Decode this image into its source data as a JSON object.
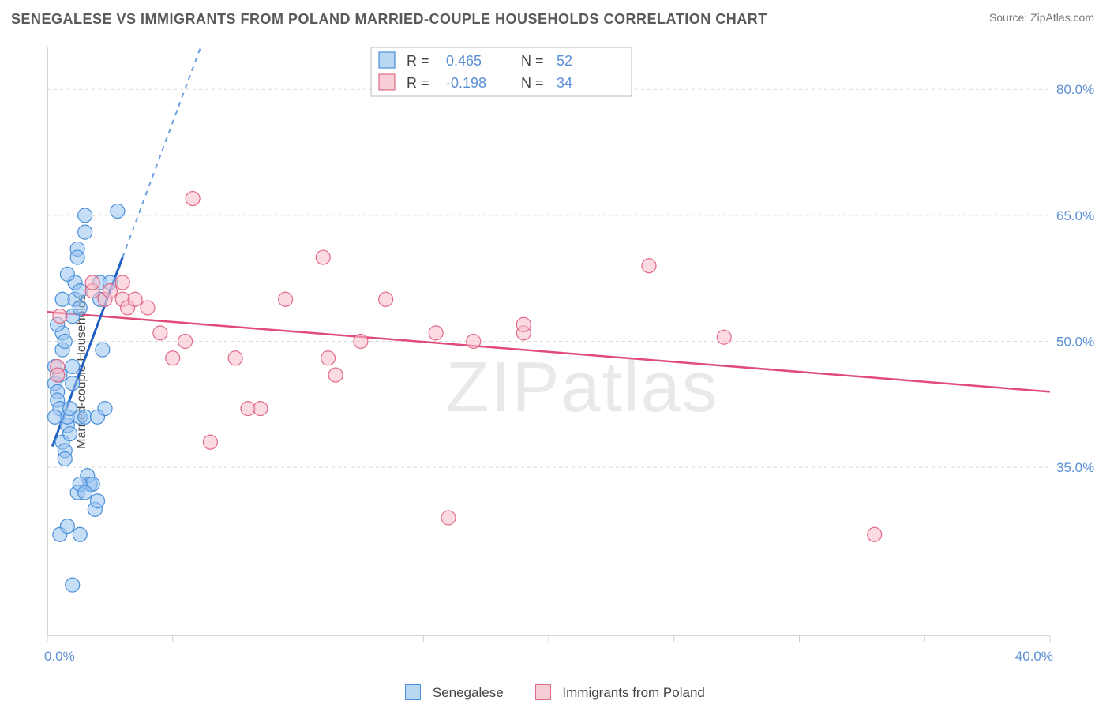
{
  "title": "SENEGALESE VS IMMIGRANTS FROM POLAND MARRIED-COUPLE HOUSEHOLDS CORRELATION CHART",
  "source": "Source: ZipAtlas.com",
  "ylabel": "Married-couple Households",
  "watermark": "ZIPatlas",
  "chart": {
    "type": "scatter",
    "background_color": "#ffffff",
    "grid_color": "#d9d9d9",
    "axis_color": "#cccccc",
    "xlim": [
      0,
      40
    ],
    "ylim": [
      15,
      85
    ],
    "x_ticks": [
      0,
      5,
      10,
      15,
      20,
      25,
      30,
      35,
      40
    ],
    "x_tick_labels": {
      "0": "0.0%",
      "40": "40.0%"
    },
    "y_ticks": [
      35,
      50,
      65,
      80
    ],
    "y_tick_labels": {
      "35": "35.0%",
      "50": "50.0%",
      "65": "65.0%",
      "80": "80.0%"
    },
    "marker_radius": 9,
    "series": [
      {
        "name": "Senegalese",
        "color_fill": "#99c3f0",
        "color_stroke": "#4a90d9",
        "R": 0.465,
        "N": 52,
        "regression": {
          "x1": 0.2,
          "y1": 37.5,
          "x2": 3.0,
          "y2": 60.0,
          "extend_dashed_to_top": true
        },
        "points": [
          [
            0.3,
            47
          ],
          [
            0.3,
            45
          ],
          [
            0.4,
            44
          ],
          [
            0.4,
            43
          ],
          [
            0.5,
            46
          ],
          [
            0.5,
            42
          ],
          [
            0.6,
            49
          ],
          [
            0.6,
            51
          ],
          [
            0.6,
            38
          ],
          [
            0.7,
            37
          ],
          [
            0.7,
            36
          ],
          [
            0.8,
            40
          ],
          [
            0.8,
            41
          ],
          [
            0.9,
            42
          ],
          [
            0.9,
            39
          ],
          [
            1.0,
            45
          ],
          [
            1.0,
            47
          ],
          [
            1.0,
            53
          ],
          [
            1.1,
            57
          ],
          [
            1.1,
            55
          ],
          [
            1.2,
            61
          ],
          [
            1.2,
            60
          ],
          [
            1.3,
            56
          ],
          [
            1.3,
            54
          ],
          [
            1.3,
            41
          ],
          [
            1.5,
            63
          ],
          [
            1.5,
            65
          ],
          [
            1.5,
            41
          ],
          [
            1.6,
            34
          ],
          [
            1.7,
            33
          ],
          [
            1.8,
            33
          ],
          [
            1.9,
            30
          ],
          [
            2.0,
            31
          ],
          [
            2.0,
            41
          ],
          [
            2.1,
            57
          ],
          [
            2.1,
            55
          ],
          [
            2.2,
            49
          ],
          [
            2.3,
            42
          ],
          [
            2.5,
            57
          ],
          [
            2.8,
            65.5
          ],
          [
            0.5,
            27
          ],
          [
            0.8,
            28
          ],
          [
            1.2,
            32
          ],
          [
            1.3,
            33
          ],
          [
            1.5,
            32
          ],
          [
            0.6,
            55
          ],
          [
            0.8,
            58
          ],
          [
            0.4,
            52
          ],
          [
            0.7,
            50
          ],
          [
            1.0,
            21
          ],
          [
            1.3,
            27
          ],
          [
            0.3,
            41
          ]
        ]
      },
      {
        "name": "Immigrants from Poland",
        "color_fill": "#f7bdc9",
        "color_stroke": "#e06a8a",
        "R": -0.198,
        "N": 34,
        "regression": {
          "x1": 0.0,
          "y1": 53.5,
          "x2": 40.0,
          "y2": 44.0
        },
        "points": [
          [
            0.4,
            47
          ],
          [
            0.4,
            46
          ],
          [
            0.5,
            53
          ],
          [
            1.8,
            56
          ],
          [
            1.8,
            57
          ],
          [
            2.3,
            55
          ],
          [
            2.5,
            56
          ],
          [
            3.0,
            57
          ],
          [
            3.0,
            55
          ],
          [
            3.2,
            54
          ],
          [
            3.5,
            55
          ],
          [
            4.0,
            54
          ],
          [
            4.5,
            51
          ],
          [
            5.0,
            48
          ],
          [
            5.5,
            50
          ],
          [
            5.8,
            67
          ],
          [
            6.5,
            38
          ],
          [
            7.5,
            48
          ],
          [
            8.0,
            42
          ],
          [
            8.5,
            42
          ],
          [
            9.5,
            55
          ],
          [
            11.0,
            60
          ],
          [
            11.2,
            48
          ],
          [
            11.5,
            46
          ],
          [
            12.5,
            50
          ],
          [
            13.5,
            55
          ],
          [
            15.5,
            51
          ],
          [
            16.0,
            29
          ],
          [
            17.0,
            50
          ],
          [
            19.0,
            51
          ],
          [
            19.0,
            52
          ],
          [
            24.0,
            59
          ],
          [
            27.0,
            50.5
          ],
          [
            33.0,
            27
          ]
        ]
      }
    ],
    "legend_top": {
      "rows": [
        {
          "swatch": "blue",
          "r_label": "R =",
          "r_value": "0.465",
          "n_label": "N =",
          "n_value": "52"
        },
        {
          "swatch": "pink",
          "r_label": "R =",
          "r_value": "-0.198",
          "n_label": "N =",
          "n_value": "34"
        }
      ]
    },
    "legend_bottom": [
      {
        "swatch": "blue",
        "label": "Senegalese"
      },
      {
        "swatch": "pink",
        "label": "Immigrants from Poland"
      }
    ]
  }
}
